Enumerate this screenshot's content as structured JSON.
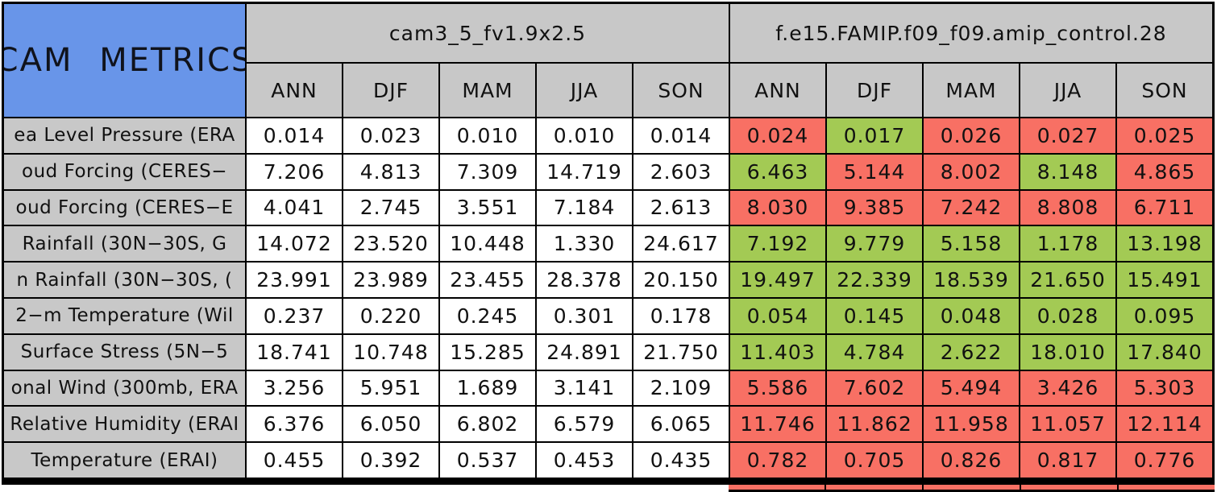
{
  "title": "CAM METRICS",
  "colors": {
    "title_background_blue": "#6895E9",
    "header_gray": "#C8C8C8",
    "value_cell_white": "#FFFFFF",
    "highlight_green": "#A3CA54",
    "highlight_red": "#F87064",
    "grid_border_black": "#000000"
  },
  "groups": [
    {
      "name": "cam3_5_fv1.9x2.5",
      "seasons": [
        "ANN",
        "DJF",
        "MAM",
        "JJA",
        "SON"
      ]
    },
    {
      "name": "f.e15.FAMIP.f09_f09.amip_control.28",
      "seasons": [
        "ANN",
        "DJF",
        "MAM",
        "JJA",
        "SON"
      ]
    }
  ],
  "rows": [
    {
      "label": "ea Level Pressure (ERA",
      "cam": [
        "0.014",
        "0.023",
        "0.010",
        "0.010",
        "0.014"
      ],
      "famip": [
        "0.024",
        "0.017",
        "0.026",
        "0.027",
        "0.025"
      ],
      "famip_colors": [
        "red",
        "green",
        "red",
        "red",
        "red"
      ]
    },
    {
      "label": "oud Forcing (CERES−",
      "cam": [
        "7.206",
        "4.813",
        "7.309",
        "14.719",
        "2.603"
      ],
      "famip": [
        "6.463",
        "5.144",
        "8.002",
        "8.148",
        "4.865"
      ],
      "famip_colors": [
        "green",
        "red",
        "red",
        "green",
        "red"
      ]
    },
    {
      "label": "oud Forcing (CERES−E",
      "cam": [
        "4.041",
        "2.745",
        "3.551",
        "7.184",
        "2.613"
      ],
      "famip": [
        "8.030",
        "9.385",
        "7.242",
        "8.808",
        "6.711"
      ],
      "famip_colors": [
        "red",
        "red",
        "red",
        "red",
        "red"
      ]
    },
    {
      "label": "Rainfall (30N−30S, G",
      "cam": [
        "14.072",
        "23.520",
        "10.448",
        "1.330",
        "24.617"
      ],
      "famip": [
        "7.192",
        "9.779",
        "5.158",
        "1.178",
        "13.198"
      ],
      "famip_colors": [
        "green",
        "green",
        "green",
        "green",
        "green"
      ]
    },
    {
      "label": "n Rainfall (30N−30S, (",
      "cam": [
        "23.991",
        "23.989",
        "23.455",
        "28.378",
        "20.150"
      ],
      "famip": [
        "19.497",
        "22.339",
        "18.539",
        "21.650",
        "15.491"
      ],
      "famip_colors": [
        "green",
        "green",
        "green",
        "green",
        "green"
      ]
    },
    {
      "label": "2−m Temperature (Wil",
      "cam": [
        "0.237",
        "0.220",
        "0.245",
        "0.301",
        "0.178"
      ],
      "famip": [
        "0.054",
        "0.145",
        "0.048",
        "0.028",
        "0.095"
      ],
      "famip_colors": [
        "green",
        "green",
        "green",
        "green",
        "green"
      ]
    },
    {
      "label": "Surface Stress (5N−5",
      "cam": [
        "18.741",
        "10.748",
        "15.285",
        "24.891",
        "21.750"
      ],
      "famip": [
        "11.403",
        "4.784",
        "2.622",
        "18.010",
        "17.840"
      ],
      "famip_colors": [
        "green",
        "green",
        "green",
        "green",
        "green"
      ]
    },
    {
      "label": "onal Wind (300mb, ERA",
      "cam": [
        "3.256",
        "5.951",
        "1.689",
        "3.141",
        "2.109"
      ],
      "famip": [
        "5.586",
        "7.602",
        "5.494",
        "3.426",
        "5.303"
      ],
      "famip_colors": [
        "red",
        "red",
        "red",
        "red",
        "red"
      ]
    },
    {
      "label": "Relative Humidity (ERAI",
      "cam": [
        "6.376",
        "6.050",
        "6.802",
        "6.579",
        "6.065"
      ],
      "famip": [
        "11.746",
        "11.862",
        "11.958",
        "11.057",
        "12.114"
      ],
      "famip_colors": [
        "red",
        "red",
        "red",
        "red",
        "red"
      ]
    },
    {
      "label": "Temperature (ERAI)",
      "cam": [
        "0.455",
        "0.392",
        "0.537",
        "0.453",
        "0.435"
      ],
      "famip": [
        "0.782",
        "0.705",
        "0.826",
        "0.817",
        "0.776"
      ],
      "famip_colors": [
        "red",
        "red",
        "red",
        "red",
        "red"
      ]
    }
  ],
  "chart_data": {
    "type": "table",
    "title": "CAM METRICS",
    "column_groups": [
      "cam3_5_fv1.9x2.5",
      "f.e15.FAMIP.f09_f09.amip_control.28"
    ],
    "columns": [
      "ANN",
      "DJF",
      "MAM",
      "JJA",
      "SON",
      "ANN",
      "DJF",
      "MAM",
      "JJA",
      "SON"
    ],
    "row_labels": [
      "ea Level Pressure (ERA",
      "oud Forcing (CERES−",
      "oud Forcing (CERES−E",
      "Rainfall (30N−30S, G",
      "n Rainfall (30N−30S, (",
      "2−m Temperature (Wil",
      "Surface Stress (5N−5",
      "onal Wind (300mb, ERA",
      "Relative Humidity (ERAI",
      "Temperature (ERAI)"
    ],
    "values": [
      [
        0.014,
        0.023,
        0.01,
        0.01,
        0.014,
        0.024,
        0.017,
        0.026,
        0.027,
        0.025
      ],
      [
        7.206,
        4.813,
        7.309,
        14.719,
        2.603,
        6.463,
        5.144,
        8.002,
        8.148,
        4.865
      ],
      [
        4.041,
        2.745,
        3.551,
        7.184,
        2.613,
        8.03,
        9.385,
        7.242,
        8.808,
        6.711
      ],
      [
        14.072,
        23.52,
        10.448,
        1.33,
        24.617,
        7.192,
        9.779,
        5.158,
        1.178,
        13.198
      ],
      [
        23.991,
        23.989,
        23.455,
        28.378,
        20.15,
        19.497,
        22.339,
        18.539,
        21.65,
        15.491
      ],
      [
        0.237,
        0.22,
        0.245,
        0.301,
        0.178,
        0.054,
        0.145,
        0.048,
        0.028,
        0.095
      ],
      [
        18.741,
        10.748,
        15.285,
        24.891,
        21.75,
        11.403,
        4.784,
        2.622,
        18.01,
        17.84
      ],
      [
        3.256,
        5.951,
        1.689,
        3.141,
        2.109,
        5.586,
        7.602,
        5.494,
        3.426,
        5.303
      ],
      [
        6.376,
        6.05,
        6.802,
        6.579,
        6.065,
        11.746,
        11.862,
        11.958,
        11.057,
        12.114
      ],
      [
        0.455,
        0.392,
        0.537,
        0.453,
        0.435,
        0.782,
        0.705,
        0.826,
        0.817,
        0.776
      ]
    ],
    "cell_colors_second_group": [
      [
        "red",
        "green",
        "red",
        "red",
        "red"
      ],
      [
        "green",
        "red",
        "red",
        "green",
        "red"
      ],
      [
        "red",
        "red",
        "red",
        "red",
        "red"
      ],
      [
        "green",
        "green",
        "green",
        "green",
        "green"
      ],
      [
        "green",
        "green",
        "green",
        "green",
        "green"
      ],
      [
        "green",
        "green",
        "green",
        "green",
        "green"
      ],
      [
        "green",
        "green",
        "green",
        "green",
        "green"
      ],
      [
        "red",
        "red",
        "red",
        "red",
        "red"
      ],
      [
        "red",
        "red",
        "red",
        "red",
        "red"
      ],
      [
        "red",
        "red",
        "red",
        "red",
        "red"
      ]
    ],
    "layout": "first column = metric labels on gray; first 5 data columns white (cam3_5_fv1.9x2.5); last 5 data columns colored red/green (f.e15.FAMIP.f09_f09.amip_control.28); black gridlines"
  }
}
